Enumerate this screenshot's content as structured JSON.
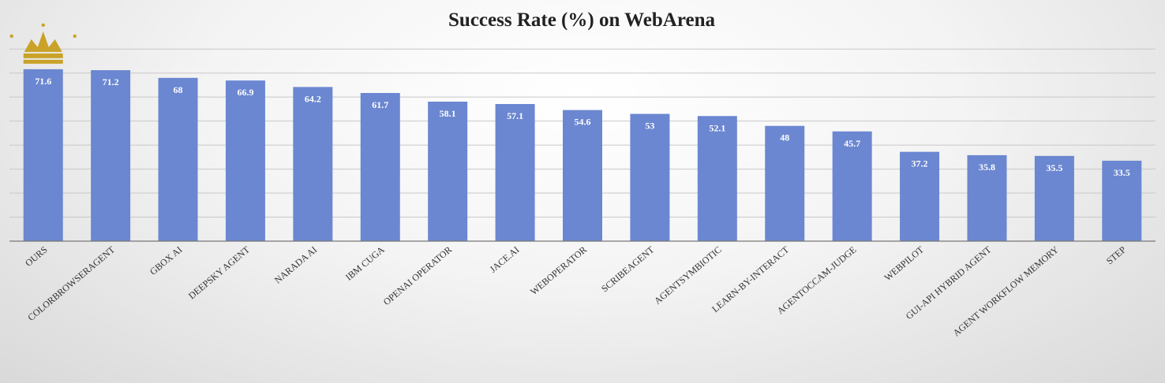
{
  "chart_data": {
    "type": "bar",
    "title": "Success Rate (%) on WebArena",
    "categories": [
      "OURS",
      "COLORBROWSERAGENT",
      "GBOX AI",
      "DEEPSKY AGENT",
      "NARADA AI",
      "IBM CUGA",
      "OPENAI OPERATOR",
      "JACE.AI",
      "WEBOPERATOR",
      "SCRIBEAGENT",
      "AGENTSYMBIOTIC",
      "LEARN-BY-INTERACT",
      "AGENTOCCAM-JUDGE",
      "WEBPILOT",
      "GUI-API HYBRID AGENT",
      "AGENT WORKFLOW MEMORY",
      "STEP"
    ],
    "values": [
      71.6,
      71.2,
      68,
      66.9,
      64.2,
      61.7,
      58.1,
      57.1,
      54.6,
      53,
      52.1,
      48,
      45.7,
      37.2,
      35.8,
      35.5,
      33.5
    ],
    "value_labels": [
      "71.6",
      "71.2",
      "68",
      "66.9",
      "64.2",
      "61.7",
      "58.1",
      "57.1",
      "54.6",
      "53",
      "52.1",
      "48",
      "45.7",
      "37.2",
      "35.8",
      "35.5",
      "33.5"
    ],
    "ylim": [
      0,
      80
    ],
    "grid": true,
    "legend": "none",
    "bar_color": "#6b87d1",
    "highlight": {
      "category": "OURS",
      "icon": "crown-icon",
      "color": "#c9a227"
    }
  }
}
